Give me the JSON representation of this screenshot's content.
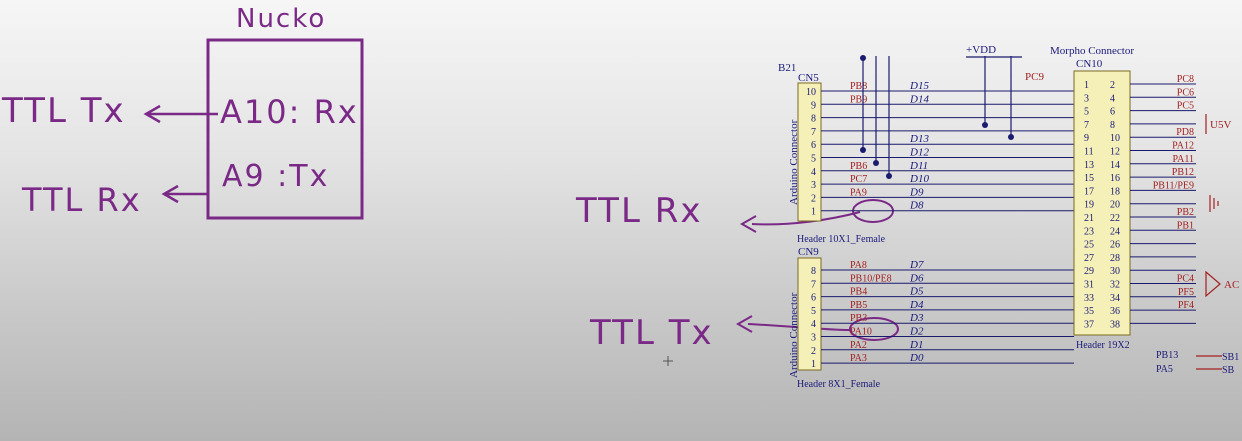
{
  "sketch": {
    "board_title": "Nucko",
    "pin_rx": "A10: Rx",
    "pin_tx": "A9 :Tx",
    "left_ttl_tx": "TTL Tx",
    "left_ttl_rx": "TTL Rx",
    "right_ttl_rx": "TTL Rx",
    "right_ttl_tx": "TTL Tx"
  },
  "schematic": {
    "top_labels": {
      "b21": "B21",
      "vdd": "+VDD",
      "morpho": "Morpho Connector",
      "pc9": "PC9",
      "cn10": "CN10"
    },
    "cn5": {
      "ref": "CN5",
      "side_label": "Arduino Connector",
      "footer": "Header 10X1_Female",
      "pins": [
        "10",
        "9",
        "8",
        "7",
        "6",
        "5",
        "4",
        "3",
        "2",
        "1"
      ],
      "ports": [
        "PB8",
        "PB9",
        "",
        "",
        "",
        "",
        "PB6",
        "PC7",
        "PA9",
        ""
      ],
      "dnames": [
        "D15",
        "D14",
        "",
        "",
        "D13",
        "D12",
        "D11",
        "D10",
        "D9",
        "D8"
      ]
    },
    "cn9": {
      "ref": "CN9",
      "side_label": "Arduino Connector",
      "footer": "Header 8X1_Female",
      "pins": [
        "8",
        "7",
        "6",
        "5",
        "4",
        "3",
        "2",
        "1"
      ],
      "ports": [
        "PA8",
        "PB10/PE8",
        "PB4",
        "PB5",
        "PB3",
        "PA10",
        "PA2",
        "PA3"
      ],
      "dnames": [
        "D7",
        "D6",
        "D5",
        "D4",
        "D3",
        "D2",
        "D1",
        "D0"
      ]
    },
    "cn10": {
      "footer": "Header 19X2",
      "left_pins": [
        "1",
        "3",
        "5",
        "7",
        "9",
        "11",
        "13",
        "15",
        "17",
        "19",
        "21",
        "23",
        "25",
        "27",
        "29",
        "31",
        "33",
        "35",
        "37"
      ],
      "right_pins": [
        "2",
        "4",
        "6",
        "8",
        "10",
        "12",
        "14",
        "16",
        "18",
        "20",
        "22",
        "24",
        "26",
        "28",
        "30",
        "32",
        "34",
        "36",
        "38"
      ],
      "right_ports": [
        "PC8",
        "PC6",
        "PC5",
        "",
        "PD8",
        "PA12",
        "PA11",
        "PB12",
        "PB11/PE9",
        "",
        "PB2",
        "PB1",
        "",
        "",
        "",
        "PC4",
        "PF5",
        "PF4",
        ""
      ]
    },
    "edge_labels": {
      "u5v": "U5V",
      "ac": "AC",
      "pb13": "PB13",
      "pa5": "PA5",
      "sb1": "SB1",
      "sb2": "SB"
    }
  },
  "colors": {
    "ink": "#7a2a86",
    "wire": "#1a1a6e",
    "header_fill": "#f5f0b8",
    "text": "#1a1a7a",
    "red": "#a32020"
  }
}
